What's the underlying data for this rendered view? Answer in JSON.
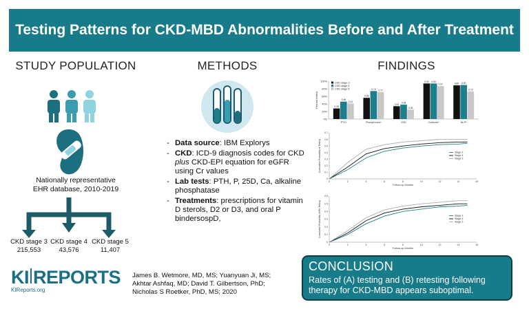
{
  "header": {
    "title": "Testing Patterns for CKD-MBD Abnormalities Before and After Treatment"
  },
  "study_population": {
    "heading": "STUDY POPULATION",
    "description": [
      "Nationally representative",
      "EHR database, 2010-2019"
    ],
    "groups": [
      {
        "label": "CKD stage 3",
        "count": "215,553"
      },
      {
        "label": "CKD stage 4",
        "count": "43,576"
      },
      {
        "label": "CKD stage 5",
        "count": "11,407"
      }
    ]
  },
  "methods": {
    "heading": "METHODS",
    "items": [
      {
        "label": "Data source",
        "text": ": IBM Explorys"
      },
      {
        "label": "CKD",
        "text": ": ICD-9 diagnosis codes for CKD",
        "emphasis": "plus",
        "text_after": "CKD-EPI equation for eGFR using Cr values"
      },
      {
        "label": "Lab tests",
        "text": ": PTH, P, 25D, Ca, alkaline phosphatase"
      },
      {
        "label": "Treatments",
        "text": ": prescriptions for vitamin D sterols, D2 or D3, and oral P bindersospD,"
      }
    ]
  },
  "findings": {
    "heading": "FINDINGS"
  },
  "chart_data": [
    {
      "type": "bar",
      "y_label": "Percent tested",
      "categories": [
        "PTH",
        "Phosphorus*",
        "25D",
        "Calcium*",
        "ALP*"
      ],
      "series": [
        {
          "name": "CKD stage 3",
          "color": "#111111",
          "values": [
            0.28,
            0.56,
            0.34,
            0.94,
            0.89
          ],
          "value_labels": [
            "0.28",
            "0.56",
            "0.34",
            "0.94",
            "0.89"
          ]
        },
        {
          "name": "CKD stage 4",
          "color": "#1d7f8c",
          "values": [
            0.46,
            0.74,
            0.38,
            0.94,
            0.9
          ],
          "value_labels": [
            "0.46",
            "0.74",
            "0.38",
            "0.94",
            "0.90"
          ]
        },
        {
          "name": "CKD stage 5",
          "color": "#c8c8c8",
          "values": [
            0.41,
            0.71,
            0.25,
            0.87,
            0.73
          ],
          "value_labels": [
            "0.41",
            "0.71",
            "0.25",
            "0.87",
            "0.73"
          ]
        }
      ],
      "ylim": [
        0,
        1
      ],
      "yticks": [
        {
          "value": 0,
          "label": "0%"
        },
        {
          "value": 0.2,
          "label": "20%"
        },
        {
          "value": 0.4,
          "label": "40%"
        },
        {
          "value": 0.6,
          "label": "60%"
        },
        {
          "value": 0.8,
          "label": "80%"
        },
        {
          "value": 1,
          "label": "100%"
        }
      ],
      "grid": false,
      "legend": "top-left"
    },
    {
      "type": "line",
      "x_label": "Follow-up Months",
      "y_label": "Cumulative Probability of Testing",
      "x": [
        0,
        2,
        4,
        6,
        8,
        10,
        12,
        14,
        15
      ],
      "series": [
        {
          "name": "Stage 3",
          "color": "#1d7f8c",
          "values": [
            0,
            0.14,
            0.32,
            0.42,
            0.47,
            0.5,
            0.52,
            0.53,
            0.54
          ]
        },
        {
          "name": "Stage 4",
          "color": "#111111",
          "values": [
            0,
            0.18,
            0.38,
            0.46,
            0.5,
            0.53,
            0.55,
            0.56,
            0.56
          ]
        },
        {
          "name": "Stage 5",
          "color": "#aaaaaa",
          "values": [
            0,
            0.25,
            0.45,
            0.52,
            0.56,
            0.58,
            0.6,
            0.6,
            0.6
          ]
        }
      ],
      "xlim": [
        0,
        16
      ],
      "xticks": [
        0,
        2,
        4,
        6,
        8,
        10,
        12,
        14,
        16
      ],
      "ylim": [
        0,
        0.7
      ],
      "yticks": [
        0,
        0.1,
        0.2,
        0.3,
        0.4,
        0.5,
        0.6,
        0.7
      ],
      "grid": false,
      "legend": "right"
    },
    {
      "type": "line",
      "x_label": "Follow-up Months",
      "y_label": "Cumulative Probability of Re-Testing",
      "x": [
        0,
        2,
        4,
        6,
        8,
        10,
        12,
        14,
        15
      ],
      "series": [
        {
          "name": "Stage 3",
          "color": "#1d7f8c",
          "values": [
            0,
            0.1,
            0.24,
            0.34,
            0.4,
            0.43,
            0.46,
            0.47,
            0.48
          ]
        },
        {
          "name": "Stage 4",
          "color": "#111111",
          "values": [
            0,
            0.12,
            0.28,
            0.38,
            0.43,
            0.46,
            0.48,
            0.5,
            0.5
          ]
        },
        {
          "name": "Stage 5",
          "color": "#aaaaaa",
          "values": [
            0,
            0.15,
            0.32,
            0.42,
            0.47,
            0.5,
            0.52,
            0.54,
            0.54
          ]
        }
      ],
      "xlim": [
        0,
        16
      ],
      "xticks": [
        0,
        2,
        4,
        6,
        8,
        10,
        12,
        14,
        16
      ],
      "ylim": [
        0,
        0.6
      ],
      "yticks": [
        0,
        0.1,
        0.2,
        0.3,
        0.4,
        0.5,
        0.6
      ],
      "grid": false,
      "legend": "right"
    }
  ],
  "conclusion": {
    "heading": "CONCLUSION",
    "text": "Rates of (A) testing and (B) retesting following therapy for CKD-MBD appears suboptimal."
  },
  "footer": {
    "logo": {
      "ki": "KI",
      "reports": "REPORTS",
      "url": "KIReports.org"
    },
    "authors": "James B. Wetmore, MD, MS; Yuanyuan Ji, MS; Akhtar Ashfaq, MD; David T. Gilbertson, PhD; Nicholas S Roetker, PhD, MS; 2020"
  }
}
